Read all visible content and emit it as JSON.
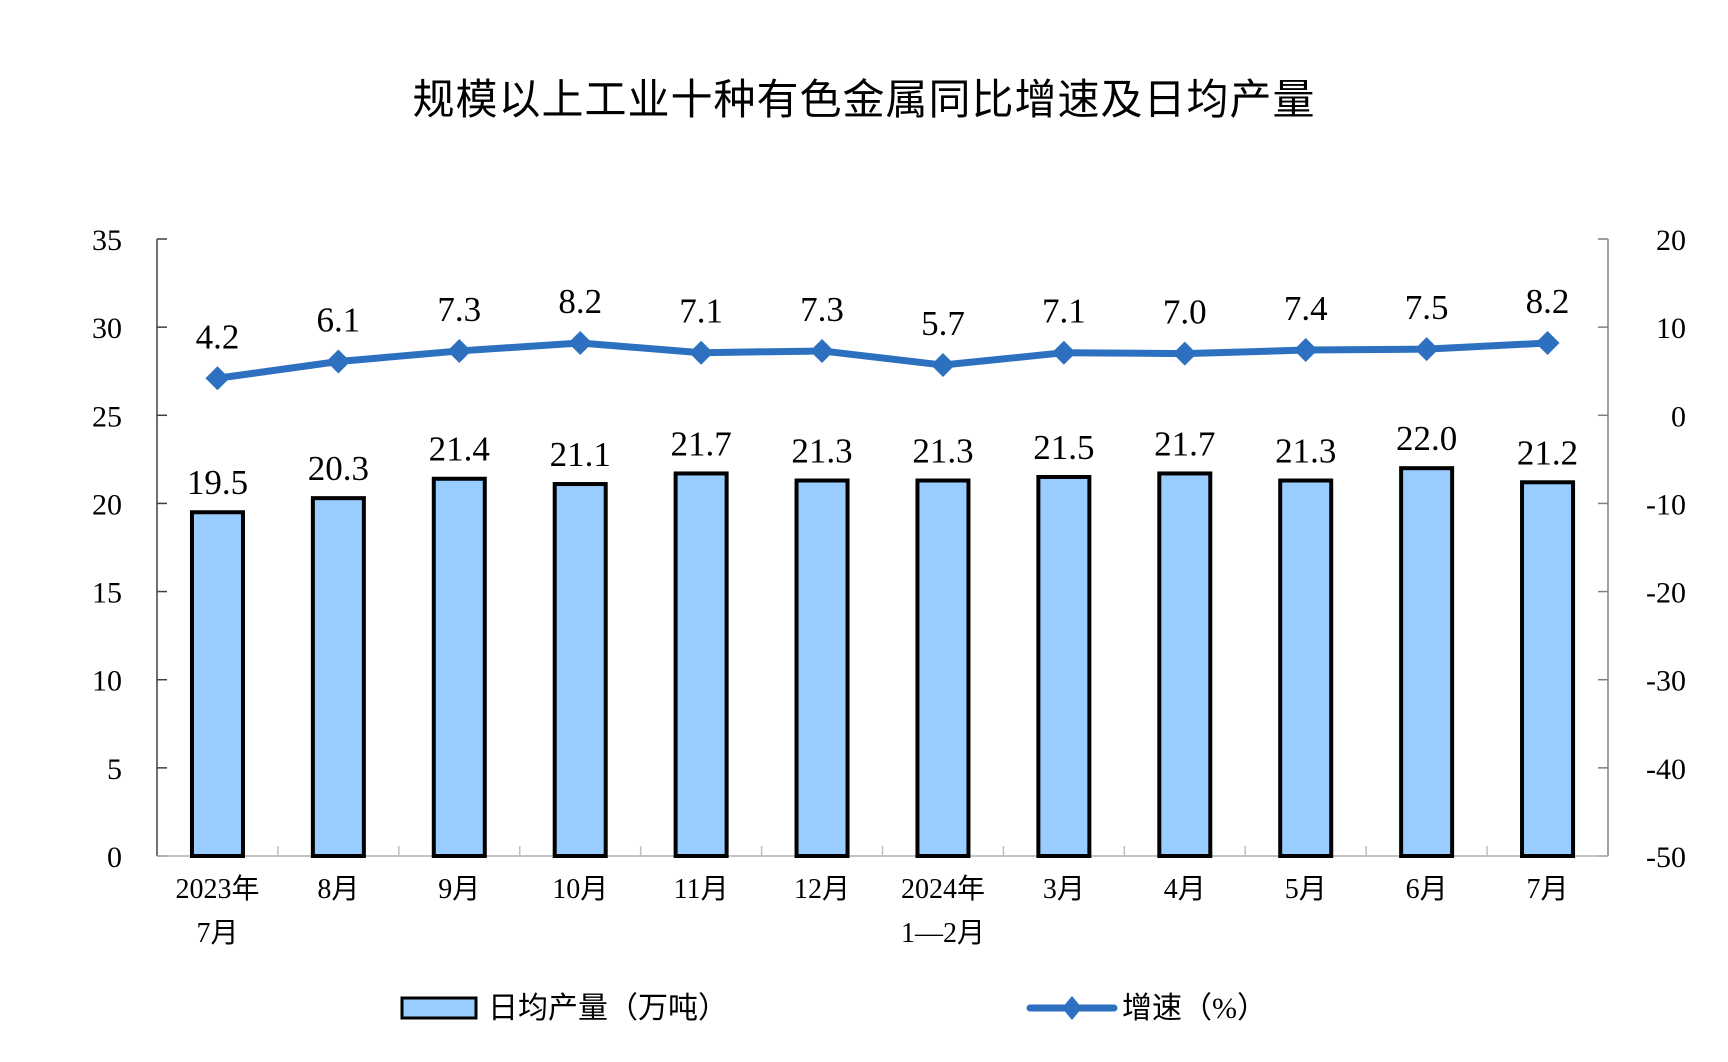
{
  "title": "规模以上工业十种有色金属同比增速及日均产量",
  "colors": {
    "bar_fill": "#99CCFF",
    "bar_stroke": "#000000",
    "line": "#2E70C0",
    "axis": "#808080"
  },
  "chart_data": {
    "type": "bar+line",
    "title": "规模以上工业十种有色金属同比增速及日均产量",
    "categories": [
      [
        "2023年",
        "7月"
      ],
      [
        "8月"
      ],
      [
        "9月"
      ],
      [
        "10月"
      ],
      [
        "11月"
      ],
      [
        "12月"
      ],
      [
        "2024年",
        "1—2月"
      ],
      [
        "3月"
      ],
      [
        "4月"
      ],
      [
        "5月"
      ],
      [
        "6月"
      ],
      [
        "7月"
      ]
    ],
    "series": [
      {
        "name": "日均产量（万吨）",
        "type": "bar",
        "axis": "left",
        "values": [
          19.5,
          20.3,
          21.4,
          21.1,
          21.7,
          21.3,
          21.3,
          21.5,
          21.7,
          21.3,
          22.0,
          21.2
        ],
        "labels": [
          "19.5",
          "20.3",
          "21.4",
          "21.1",
          "21.7",
          "21.3",
          "21.3",
          "21.5",
          "21.7",
          "21.3",
          "22.0",
          "21.2"
        ]
      },
      {
        "name": "增速（%）",
        "type": "line",
        "axis": "right",
        "values": [
          4.2,
          6.1,
          7.3,
          8.2,
          7.1,
          7.3,
          5.7,
          7.1,
          7.0,
          7.4,
          7.5,
          8.2
        ],
        "labels": [
          "4.2",
          "6.1",
          "7.3",
          "8.2",
          "7.1",
          "7.3",
          "5.7",
          "7.1",
          "7.0",
          "7.4",
          "7.5",
          "8.2"
        ]
      }
    ],
    "left_axis": {
      "min": 0,
      "max": 35,
      "step": 5,
      "ticks": [
        "0",
        "5",
        "10",
        "15",
        "20",
        "25",
        "30",
        "35"
      ]
    },
    "right_axis": {
      "min": -50,
      "max": 20,
      "step": 10,
      "ticks": [
        "-50",
        "-40",
        "-30",
        "-20",
        "-10",
        "0",
        "10",
        "20"
      ]
    },
    "xlabel": "",
    "ylabel_left": "",
    "ylabel_right": "",
    "grid": false,
    "legend_position": "bottom"
  },
  "legend": {
    "bar_label": "日均产量（万吨）",
    "line_label": "增速（%）"
  }
}
